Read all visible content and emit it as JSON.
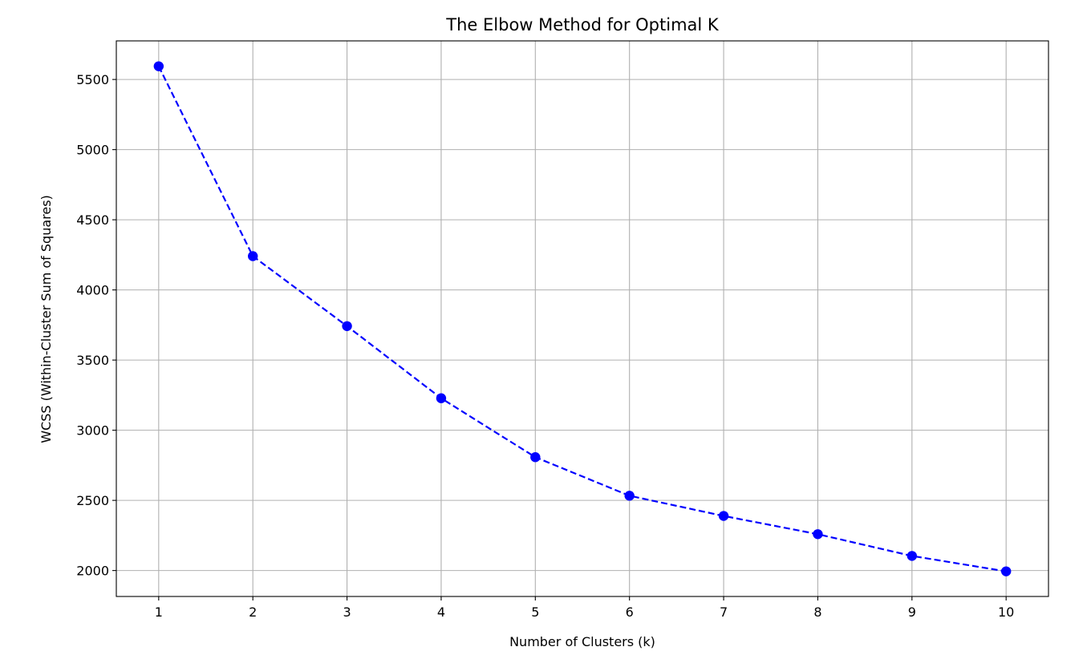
{
  "chart_data": {
    "type": "line",
    "title": "The Elbow Method for Optimal K",
    "xlabel": "Number of Clusters (k)",
    "ylabel": "WCSS (Within-Cluster Sum of Squares)",
    "x": [
      1,
      2,
      3,
      4,
      5,
      6,
      7,
      8,
      9,
      10
    ],
    "xticks": [
      "1",
      "2",
      "3",
      "4",
      "5",
      "6",
      "7",
      "8",
      "9",
      "10"
    ],
    "yticks": [
      "2000",
      "2500",
      "3000",
      "3500",
      "4000",
      "4500",
      "5000",
      "5500"
    ],
    "xlim": [
      0.55,
      10.45
    ],
    "ylim": [
      1815,
      5775
    ],
    "grid": true,
    "series": [
      {
        "values": [
          5594,
          4241,
          3742,
          3228,
          2808,
          2533,
          2389,
          2259,
          2104,
          1994
        ],
        "color": "#0000ff",
        "line_style": "dashed",
        "marker": "circle"
      }
    ]
  }
}
